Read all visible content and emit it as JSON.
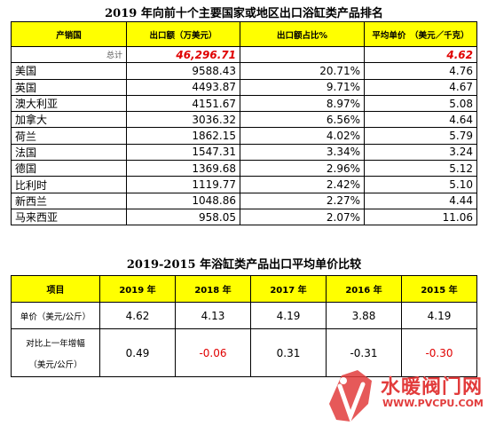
{
  "table1": {
    "title": "2019 年向前十个主要国家或地区出口浴缸类产品排名",
    "headers": [
      "产销国",
      "出口额（万美元）",
      "出口额占比%",
      "平均单价　（美元／千克）"
    ],
    "total": {
      "label": "总计",
      "value": "46,296.71",
      "share": "",
      "price": "4.62"
    },
    "rows": [
      {
        "country": "美国",
        "value": "9588.43",
        "share": "20.71%",
        "price": "4.76"
      },
      {
        "country": "英国",
        "value": "4493.87",
        "share": "9.71%",
        "price": "4.67"
      },
      {
        "country": "澳大利亚",
        "value": "4151.67",
        "share": "8.97%",
        "price": "5.08"
      },
      {
        "country": "加拿大",
        "value": "3036.32",
        "share": "6.56%",
        "price": "4.64"
      },
      {
        "country": "荷兰",
        "value": "1862.15",
        "share": "4.02%",
        "price": "5.79"
      },
      {
        "country": "法国",
        "value": "1547.31",
        "share": "3.34%",
        "price": "3.24"
      },
      {
        "country": "德国",
        "value": "1369.68",
        "share": "2.96%",
        "price": "5.12"
      },
      {
        "country": "比利时",
        "value": "1119.77",
        "share": "2.42%",
        "price": "5.10"
      },
      {
        "country": "新西兰",
        "value": "1048.86",
        "share": "2.27%",
        "price": "4.44"
      },
      {
        "country": "马来西亚",
        "value": "958.05",
        "share": "2.07%",
        "price": "11.06"
      }
    ]
  },
  "table2": {
    "title": "2019-2015 年浴缸类产品出口平均单价比较",
    "headers": [
      "项目",
      "2019 年",
      "2018 年",
      "2017 年",
      "2016 年",
      "2015 年"
    ],
    "price_row": {
      "label": "单价（美元/公斤）",
      "values": [
        "4.62",
        "4.13",
        "4.19",
        "3.88",
        "4.19"
      ]
    },
    "change_row": {
      "label_line1": "对比上一年增幅",
      "label_line2": "（美元/公斤）",
      "values": [
        "0.49",
        "-0.06",
        "0.31",
        "-0.31",
        "-0.30"
      ]
    }
  },
  "watermark": {
    "text": "水暖阀门网",
    "url": "WWW.PVCPU.COM",
    "logo_icon": "pv-logo-icon"
  },
  "colors": {
    "header_bg": "#ffff00",
    "negative": "#e00000",
    "watermark": "#e23c3c"
  }
}
